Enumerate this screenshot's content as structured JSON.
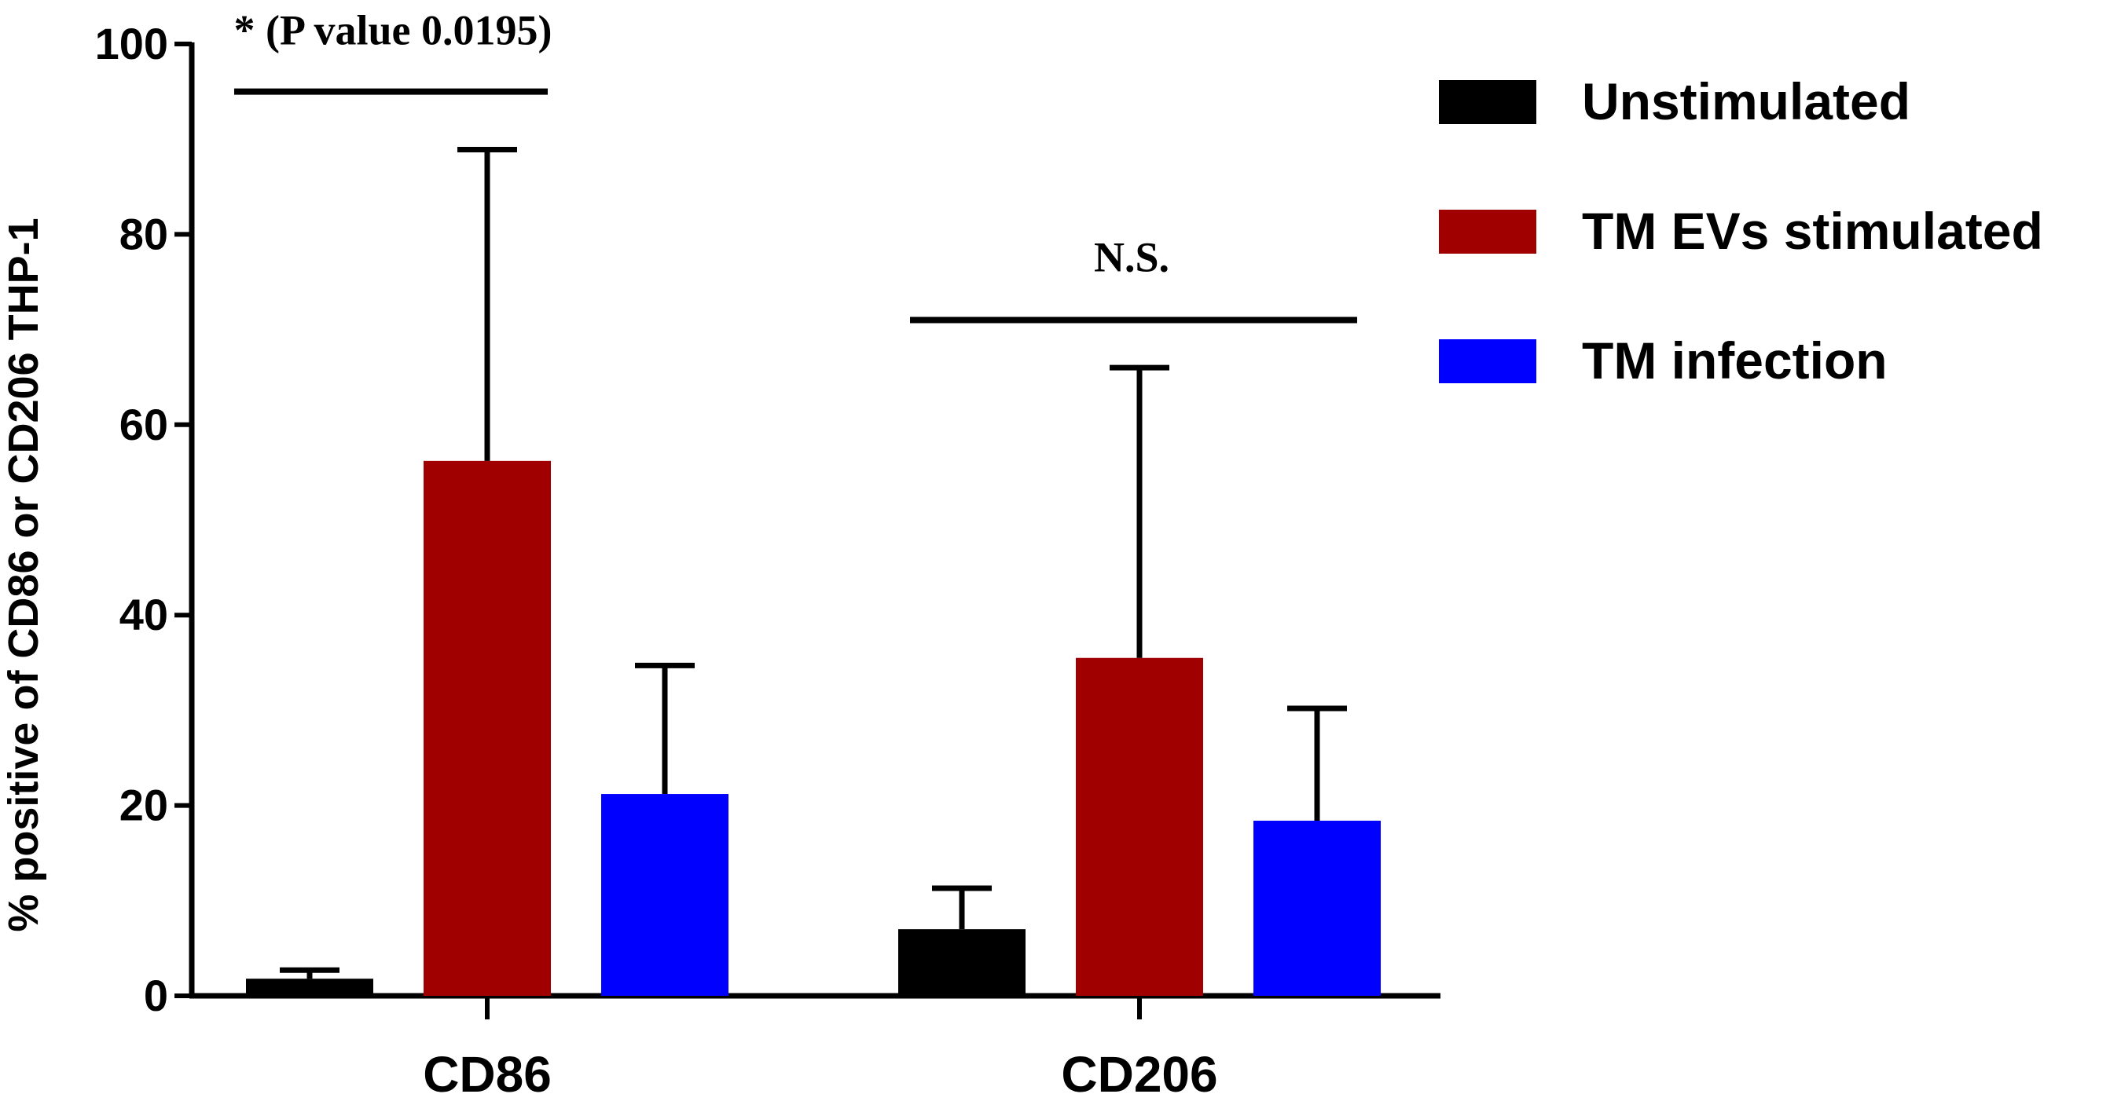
{
  "chart_data": {
    "type": "bar",
    "title": "",
    "xlabel": "",
    "ylabel": "% positive of CD86 or CD206 THP-1",
    "ylim": [
      0,
      100
    ],
    "yticks": [
      0,
      20,
      40,
      60,
      80,
      100
    ],
    "categories": [
      "CD86",
      "CD206"
    ],
    "series": [
      {
        "name": "Unstimulated",
        "color": "#000000",
        "values": [
          1.8,
          7.0
        ],
        "errors": [
          0.9,
          4.3
        ]
      },
      {
        "name": "TM EVs stimulated",
        "color": "#a00000",
        "values": [
          56.2,
          35.5
        ],
        "errors": [
          32.7,
          30.5
        ]
      },
      {
        "name": "TM infection",
        "color": "#0000ff",
        "values": [
          21.2,
          18.4
        ],
        "errors": [
          13.5,
          11.8
        ]
      }
    ],
    "legend_position": "top-right",
    "annotations": [
      {
        "category": "CD86",
        "text": "* (P value 0.0195)",
        "level": 95
      },
      {
        "category": "CD206",
        "text": "N.S.",
        "level": 71
      }
    ]
  }
}
